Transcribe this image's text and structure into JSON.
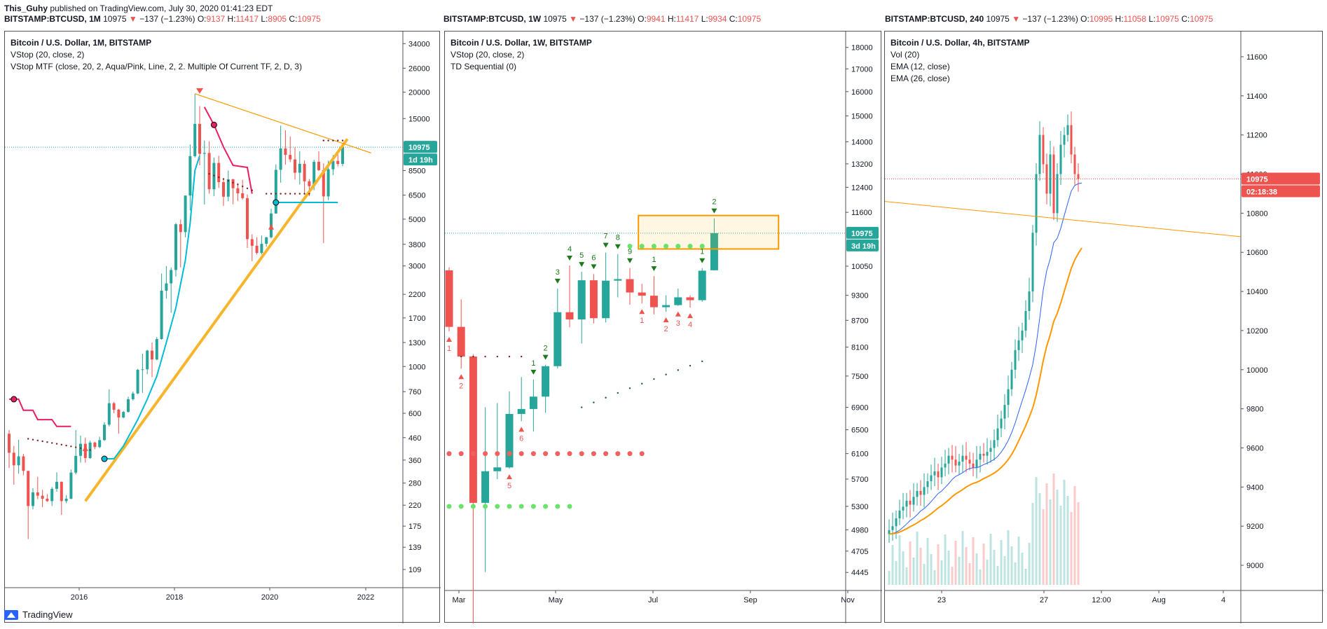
{
  "header": {
    "author": "This_Guhy",
    "text": " published on TradingView.com, July 30, 2020 01:41:23 EDT"
  },
  "strips": [
    {
      "symbol": "BITSTAMP:BTCUSD, 1M",
      "last": "10975",
      "change": "−137 (−1.23%)",
      "o": "9137",
      "h": "11417",
      "l": "8905",
      "c": "10975"
    },
    {
      "symbol": "BITSTAMP:BTCUSD, 1W",
      "last": "10975",
      "change": "−137 (−1.23%)",
      "o": "9941",
      "h": "11417",
      "l": "9934",
      "c": "10975"
    },
    {
      "symbol": "BITSTAMP:BTCUSD, 240",
      "last": "10975",
      "change": "−137 (−1.23%)",
      "o": "10995",
      "h": "11058",
      "l": "10975",
      "c": "10975"
    }
  ],
  "footer": {
    "brand": "TradingView"
  },
  "colors": {
    "up": "#26a69a",
    "down": "#ef5350",
    "aqua": "#00bcd4",
    "pink": "#e91e63",
    "orange": "#ff9800",
    "gold": "#f7b52b",
    "green_dot": "#6ae36a",
    "red_dot": "#f06161"
  },
  "chart_data": [
    {
      "type": "candlestick",
      "title": "Bitcoin / U.S. Dollar, 1M, BITSTAMP",
      "legend": [
        "VStop (20, close, 2)",
        "VStop MTF (close, 20, 2, Aqua/Pink, Line, 2, 2. Multiple Of Current TF, 2, D, 3)"
      ],
      "y_scale": "log",
      "y_ticks": [
        109,
        139,
        175,
        220,
        280,
        360,
        460,
        600,
        760,
        1000,
        1300,
        1700,
        2200,
        3000,
        3800,
        5000,
        6500,
        8500,
        15000,
        20000,
        26000,
        34000
      ],
      "x_ticks": [
        "2016",
        "2018",
        "2020",
        "2022"
      ],
      "last_price": "10975",
      "countdown": "1d 19h",
      "candles": [
        {
          "t": "2014-09",
          "o": 480,
          "h": 500,
          "l": 330,
          "c": 390
        },
        {
          "t": "2014-10",
          "o": 390,
          "h": 420,
          "l": 275,
          "c": 340
        },
        {
          "t": "2014-11",
          "o": 340,
          "h": 450,
          "l": 310,
          "c": 375
        },
        {
          "t": "2014-12",
          "o": 375,
          "h": 385,
          "l": 305,
          "c": 320
        },
        {
          "t": "2015-01",
          "o": 320,
          "h": 320,
          "l": 152,
          "c": 218
        },
        {
          "t": "2015-02",
          "o": 218,
          "h": 265,
          "l": 210,
          "c": 253
        },
        {
          "t": "2015-03",
          "o": 253,
          "h": 300,
          "l": 235,
          "c": 244
        },
        {
          "t": "2015-04",
          "o": 244,
          "h": 260,
          "l": 215,
          "c": 236
        },
        {
          "t": "2015-05",
          "o": 236,
          "h": 248,
          "l": 228,
          "c": 230
        },
        {
          "t": "2015-06",
          "o": 230,
          "h": 268,
          "l": 218,
          "c": 263
        },
        {
          "t": "2015-07",
          "o": 263,
          "h": 315,
          "l": 255,
          "c": 284
        },
        {
          "t": "2015-08",
          "o": 284,
          "h": 285,
          "l": 198,
          "c": 230
        },
        {
          "t": "2015-09",
          "o": 230,
          "h": 245,
          "l": 225,
          "c": 236
        },
        {
          "t": "2015-10",
          "o": 236,
          "h": 325,
          "l": 235,
          "c": 314
        },
        {
          "t": "2015-11",
          "o": 314,
          "h": 500,
          "l": 308,
          "c": 377
        },
        {
          "t": "2015-12",
          "o": 377,
          "h": 470,
          "l": 350,
          "c": 430
        },
        {
          "t": "2016-01",
          "o": 430,
          "h": 460,
          "l": 350,
          "c": 368
        },
        {
          "t": "2016-02",
          "o": 368,
          "h": 445,
          "l": 365,
          "c": 436
        },
        {
          "t": "2016-03",
          "o": 436,
          "h": 440,
          "l": 405,
          "c": 415
        },
        {
          "t": "2016-04",
          "o": 415,
          "h": 465,
          "l": 410,
          "c": 448
        },
        {
          "t": "2016-05",
          "o": 448,
          "h": 545,
          "l": 443,
          "c": 530
        },
        {
          "t": "2016-06",
          "o": 530,
          "h": 780,
          "l": 520,
          "c": 670
        },
        {
          "t": "2016-07",
          "o": 670,
          "h": 680,
          "l": 600,
          "c": 624
        },
        {
          "t": "2016-08",
          "o": 624,
          "h": 630,
          "l": 480,
          "c": 573
        },
        {
          "t": "2016-09",
          "o": 573,
          "h": 615,
          "l": 568,
          "c": 609
        },
        {
          "t": "2016-10",
          "o": 609,
          "h": 720,
          "l": 605,
          "c": 700
        },
        {
          "t": "2016-11",
          "o": 700,
          "h": 760,
          "l": 690,
          "c": 745
        },
        {
          "t": "2016-12",
          "o": 745,
          "h": 975,
          "l": 740,
          "c": 965
        },
        {
          "t": "2017-01",
          "o": 965,
          "h": 1150,
          "l": 750,
          "c": 970
        },
        {
          "t": "2017-02",
          "o": 970,
          "h": 1200,
          "l": 920,
          "c": 1190
        },
        {
          "t": "2017-03",
          "o": 1190,
          "h": 1300,
          "l": 890,
          "c": 1080
        },
        {
          "t": "2017-04",
          "o": 1080,
          "h": 1380,
          "l": 1070,
          "c": 1350
        },
        {
          "t": "2017-05",
          "o": 1350,
          "h": 2760,
          "l": 1340,
          "c": 2290
        },
        {
          "t": "2017-06",
          "o": 2290,
          "h": 3000,
          "l": 2100,
          "c": 2480
        },
        {
          "t": "2017-07",
          "o": 2480,
          "h": 2950,
          "l": 1800,
          "c": 2870
        },
        {
          "t": "2017-08",
          "o": 2870,
          "h": 4800,
          "l": 2670,
          "c": 4730
        },
        {
          "t": "2017-09",
          "o": 4730,
          "h": 4980,
          "l": 2950,
          "c": 4340
        },
        {
          "t": "2017-10",
          "o": 4340,
          "h": 6470,
          "l": 4100,
          "c": 6470
        },
        {
          "t": "2017-11",
          "o": 6470,
          "h": 11300,
          "l": 5500,
          "c": 9950
        },
        {
          "t": "2017-12",
          "o": 9950,
          "h": 19666,
          "l": 9800,
          "c": 14150
        },
        {
          "t": "2018-01",
          "o": 14150,
          "h": 17180,
          "l": 9000,
          "c": 10200
        },
        {
          "t": "2018-02",
          "o": 10200,
          "h": 11800,
          "l": 5873,
          "c": 10300
        },
        {
          "t": "2018-03",
          "o": 10300,
          "h": 11700,
          "l": 6600,
          "c": 6930
        },
        {
          "t": "2018-04",
          "o": 6930,
          "h": 9800,
          "l": 6430,
          "c": 9240
        },
        {
          "t": "2018-05",
          "o": 9240,
          "h": 9990,
          "l": 7030,
          "c": 7490
        },
        {
          "t": "2018-06",
          "o": 7490,
          "h": 7770,
          "l": 5780,
          "c": 6390
        },
        {
          "t": "2018-07",
          "o": 6390,
          "h": 8500,
          "l": 6080,
          "c": 7730
        },
        {
          "t": "2018-08",
          "o": 7730,
          "h": 7760,
          "l": 5880,
          "c": 7010
        },
        {
          "t": "2018-09",
          "o": 7010,
          "h": 7410,
          "l": 6100,
          "c": 6630
        },
        {
          "t": "2018-10",
          "o": 6630,
          "h": 7680,
          "l": 6200,
          "c": 6290
        },
        {
          "t": "2018-11",
          "o": 6290,
          "h": 6550,
          "l": 3650,
          "c": 4020
        },
        {
          "t": "2018-12",
          "o": 4020,
          "h": 4240,
          "l": 3160,
          "c": 3740
        },
        {
          "t": "2019-01",
          "o": 3740,
          "h": 4100,
          "l": 3400,
          "c": 3460
        },
        {
          "t": "2019-02",
          "o": 3460,
          "h": 4180,
          "l": 3400,
          "c": 3820
        },
        {
          "t": "2019-03",
          "o": 3820,
          "h": 4120,
          "l": 3700,
          "c": 4100
        },
        {
          "t": "2019-04",
          "o": 4100,
          "h": 5600,
          "l": 4050,
          "c": 5320
        },
        {
          "t": "2019-05",
          "o": 5320,
          "h": 9100,
          "l": 5300,
          "c": 8570
        },
        {
          "t": "2019-06",
          "o": 8570,
          "h": 13880,
          "l": 7450,
          "c": 10820
        },
        {
          "t": "2019-07",
          "o": 10820,
          "h": 13200,
          "l": 9070,
          "c": 10090
        },
        {
          "t": "2019-08",
          "o": 10090,
          "h": 12330,
          "l": 9320,
          "c": 9600
        },
        {
          "t": "2019-09",
          "o": 9600,
          "h": 10950,
          "l": 7700,
          "c": 8300
        },
        {
          "t": "2019-10",
          "o": 8300,
          "h": 10500,
          "l": 7300,
          "c": 9150
        },
        {
          "t": "2019-11",
          "o": 9150,
          "h": 9500,
          "l": 6520,
          "c": 7560
        },
        {
          "t": "2019-12",
          "o": 7560,
          "h": 7750,
          "l": 6430,
          "c": 7170
        },
        {
          "t": "2020-01",
          "o": 7170,
          "h": 9550,
          "l": 6860,
          "c": 9350
        },
        {
          "t": "2020-02",
          "o": 9350,
          "h": 10500,
          "l": 8450,
          "c": 8540
        },
        {
          "t": "2020-03",
          "o": 8540,
          "h": 9190,
          "l": 3850,
          "c": 6410
        },
        {
          "t": "2020-04",
          "o": 6410,
          "h": 9460,
          "l": 6150,
          "c": 8620
        },
        {
          "t": "2020-05",
          "o": 8620,
          "h": 10070,
          "l": 8100,
          "c": 9450
        },
        {
          "t": "2020-06",
          "o": 9450,
          "h": 10380,
          "l": 8900,
          "c": 9137
        },
        {
          "t": "2020-07",
          "o": 9137,
          "h": 11417,
          "l": 8905,
          "c": 10975
        }
      ]
    },
    {
      "type": "candlestick",
      "title": "Bitcoin / U.S. Dollar, 1W, BITSTAMP",
      "legend": [
        "VStop (20, close, 2)",
        "TD Sequential (0)"
      ],
      "y_scale": "log",
      "y_ticks": [
        4445,
        4705,
        4980,
        5300,
        5700,
        6100,
        6500,
        6900,
        7500,
        8100,
        8700,
        9300,
        10050,
        11600,
        12400,
        13200,
        14000,
        15000,
        16000,
        17000,
        18000
      ],
      "x_ticks": [
        "Mar",
        "May",
        "Jul",
        "Sep",
        "Nov"
      ],
      "last_price": "10975",
      "countdown": "3d 19h",
      "candles": [
        {
          "t": "2020-02-24",
          "o": 9940,
          "h": 10020,
          "l": 8450,
          "c": 8550
        },
        {
          "t": "2020-03-02",
          "o": 8550,
          "h": 9200,
          "l": 7650,
          "c": 7900
        },
        {
          "t": "2020-03-09",
          "o": 7900,
          "h": 7950,
          "l": 3850,
          "c": 5350
        },
        {
          "t": "2020-03-16",
          "o": 5350,
          "h": 6900,
          "l": 4450,
          "c": 5820
        },
        {
          "t": "2020-03-23",
          "o": 5820,
          "h": 6980,
          "l": 5700,
          "c": 5880
        },
        {
          "t": "2020-03-30",
          "o": 5880,
          "h": 7200,
          "l": 5860,
          "c": 6780
        },
        {
          "t": "2020-04-06",
          "o": 6780,
          "h": 7480,
          "l": 6650,
          "c": 6870
        },
        {
          "t": "2020-04-13",
          "o": 6870,
          "h": 7430,
          "l": 6470,
          "c": 7100
        },
        {
          "t": "2020-04-20",
          "o": 7100,
          "h": 7730,
          "l": 6800,
          "c": 7700
        },
        {
          "t": "2020-04-27",
          "o": 7700,
          "h": 9470,
          "l": 7650,
          "c": 8890
        },
        {
          "t": "2020-05-04",
          "o": 8890,
          "h": 10070,
          "l": 8540,
          "c": 8720
        },
        {
          "t": "2020-05-11",
          "o": 8720,
          "h": 9900,
          "l": 8180,
          "c": 9680
        },
        {
          "t": "2020-05-18",
          "o": 9680,
          "h": 9840,
          "l": 8630,
          "c": 8750
        },
        {
          "t": "2020-05-25",
          "o": 8750,
          "h": 10420,
          "l": 8650,
          "c": 9670
        },
        {
          "t": "2020-06-01",
          "o": 9670,
          "h": 10380,
          "l": 9250,
          "c": 9710
        },
        {
          "t": "2020-06-08",
          "o": 9710,
          "h": 10000,
          "l": 9070,
          "c": 9370
        },
        {
          "t": "2020-06-15",
          "o": 9370,
          "h": 9590,
          "l": 9100,
          "c": 9290
        },
        {
          "t": "2020-06-22",
          "o": 9290,
          "h": 9790,
          "l": 8840,
          "c": 9010
        },
        {
          "t": "2020-06-29",
          "o": 9010,
          "h": 9300,
          "l": 8900,
          "c": 9060
        },
        {
          "t": "2020-07-06",
          "o": 9060,
          "h": 9470,
          "l": 9040,
          "c": 9250
        },
        {
          "t": "2020-07-13",
          "o": 9250,
          "h": 9300,
          "l": 9000,
          "c": 9180
        },
        {
          "t": "2020-07-20",
          "o": 9180,
          "h": 10000,
          "l": 9140,
          "c": 9930
        },
        {
          "t": "2020-07-27",
          "o": 9941,
          "h": 11417,
          "l": 9934,
          "c": 10975
        }
      ],
      "td_setup_labels": [
        {
          "week": 0,
          "label": "1",
          "dir": "down"
        },
        {
          "week": 1,
          "label": "2",
          "dir": "down"
        },
        {
          "week": 5,
          "label": "5",
          "dir": "down"
        },
        {
          "week": 6,
          "label": "6",
          "dir": "down"
        },
        {
          "week": 7,
          "label": "1",
          "dir": "up"
        },
        {
          "week": 8,
          "label": "2",
          "dir": "up"
        },
        {
          "week": 9,
          "label": "3",
          "dir": "up"
        },
        {
          "week": 10,
          "label": "4",
          "dir": "up"
        },
        {
          "week": 11,
          "label": "5",
          "dir": "up"
        },
        {
          "week": 12,
          "label": "6",
          "dir": "up"
        },
        {
          "week": 13,
          "label": "7",
          "dir": "up"
        },
        {
          "week": 14,
          "label": "8",
          "dir": "up"
        },
        {
          "week": 15,
          "label": "9",
          "dir": "up"
        },
        {
          "week": 16,
          "label": "1",
          "dir": "down"
        },
        {
          "week": 17,
          "label": "1",
          "dir": "up"
        },
        {
          "week": 18,
          "label": "2",
          "dir": "down"
        },
        {
          "week": 19,
          "label": "3",
          "dir": "down"
        },
        {
          "week": 20,
          "label": "4",
          "dir": "down"
        },
        {
          "week": 21,
          "label": "1",
          "dir": "up"
        },
        {
          "week": 22,
          "label": "2",
          "dir": "up"
        }
      ]
    },
    {
      "type": "candlestick",
      "title": "Bitcoin / U.S. Dollar, 4h, BITSTAMP",
      "legend": [
        "Vol (20)",
        "EMA (12, close)",
        "EMA (26, close)"
      ],
      "y_scale": "linear",
      "y_ticks": [
        9000,
        9200,
        9400,
        9600,
        9800,
        10000,
        10200,
        10400,
        10600,
        10800,
        11000,
        11200,
        11400,
        11600
      ],
      "x_ticks": [
        "23",
        "27",
        "12:00",
        "Aug",
        "4"
      ],
      "last_price": "10975",
      "countdown": "02:18:38",
      "candles_summary": "4h candles from ~2020-07-20 to 2020-07-30, rising from ~9150 to ~11400 peak then easing to 10975"
    }
  ]
}
